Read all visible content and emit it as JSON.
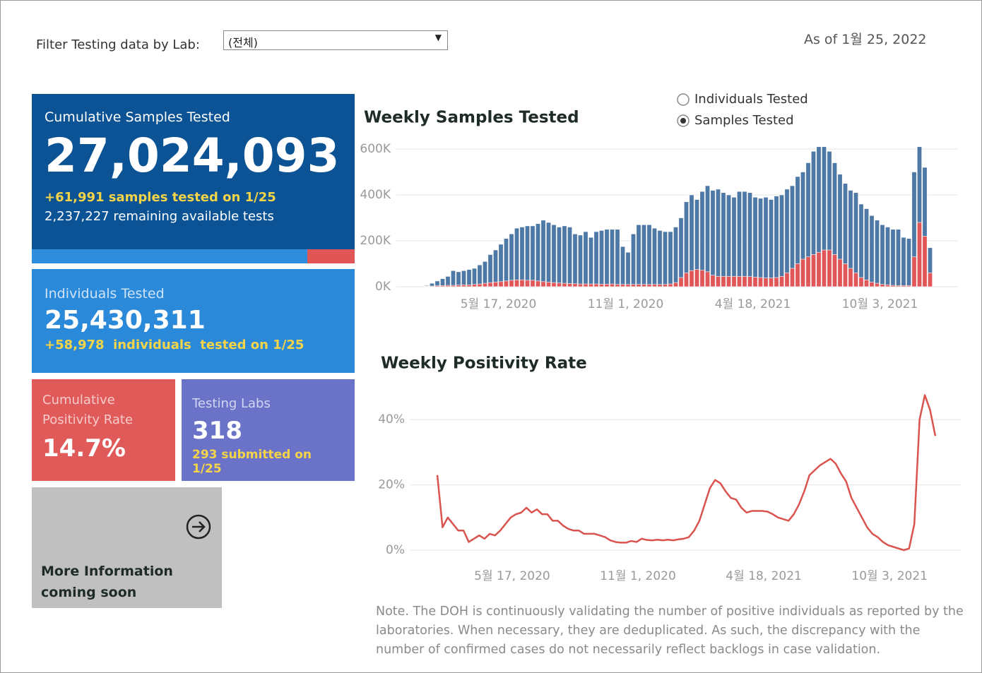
{
  "filter": {
    "label": "Filter Testing data by Lab:",
    "selected": "(전체)"
  },
  "as_of": "As of 1월 25, 2022",
  "cards": {
    "cumulative_samples": {
      "title": "Cumulative Samples Tested",
      "value": "27,024,093",
      "change": "+61,991 samples tested on 1/25",
      "remaining": "2,237,227 remaining available tests"
    },
    "individuals": {
      "title": "Individuals Tested",
      "value": "25,430,311",
      "change": "+58,978  individuals  tested on 1/25"
    },
    "positivity": {
      "title": "Cumulative Positivity Rate",
      "value": "14.7%"
    },
    "labs": {
      "title": "Testing Labs",
      "value": "318",
      "change": "293 submitted on 1/25"
    },
    "more_info": {
      "title": "More Information coming soon"
    }
  },
  "toggle": {
    "options": [
      "Individuals Tested",
      "Samples Tested"
    ],
    "selected": 1
  },
  "chart_data": [
    {
      "type": "bar",
      "title": "Weekly Samples Tested",
      "categories": [
        null,
        null,
        null,
        null,
        null,
        null,
        null,
        "5월 17, 2020",
        null,
        null,
        null,
        null,
        null,
        null,
        null,
        null,
        null,
        null,
        null,
        null,
        null,
        null,
        null,
        null,
        null,
        null,
        null,
        null,
        null,
        null,
        null,
        "11월 1, 2020",
        null,
        null,
        null,
        null,
        null,
        null,
        null,
        null,
        null,
        null,
        null,
        null,
        null,
        null,
        null,
        null,
        null,
        null,
        null,
        null,
        null,
        null,
        null,
        "4월 18, 2021",
        null,
        null,
        null,
        null,
        null,
        null,
        null,
        null,
        null,
        null,
        null,
        null,
        null,
        null,
        null,
        null,
        null,
        null,
        null,
        null,
        null,
        null,
        null,
        "10월 3, 2021",
        null,
        null,
        null,
        null,
        null,
        null,
        null,
        null,
        null,
        null,
        null,
        null,
        null,
        null,
        null,
        null
      ],
      "series": [
        {
          "color": "#4e79a7",
          "values": [
            5000,
            15000,
            25000,
            35000,
            45000,
            70000,
            65000,
            70000,
            75000,
            80000,
            95000,
            110000,
            140000,
            160000,
            185000,
            210000,
            230000,
            255000,
            260000,
            265000,
            265000,
            275000,
            290000,
            280000,
            270000,
            260000,
            265000,
            260000,
            230000,
            225000,
            240000,
            215000,
            240000,
            245000,
            250000,
            250000,
            250000,
            175000,
            150000,
            230000,
            270000,
            270000,
            270000,
            255000,
            245000,
            240000,
            240000,
            260000,
            300000,
            370000,
            400000,
            380000,
            415000,
            440000,
            420000,
            425000,
            410000,
            400000,
            390000,
            415000,
            415000,
            410000,
            390000,
            385000,
            390000,
            380000,
            395000,
            400000,
            425000,
            440000,
            480000,
            500000,
            540000,
            590000,
            610000,
            610000,
            590000,
            540000,
            490000,
            450000,
            420000,
            410000,
            360000,
            340000,
            310000,
            290000,
            270000,
            260000,
            250000,
            250000,
            215000,
            210000,
            500000,
            610000,
            520000,
            170000
          ]
        },
        {
          "color": "#e15759",
          "values": [
            2000,
            3000,
            4000,
            5000,
            6000,
            6000,
            7000,
            8000,
            8000,
            10000,
            12000,
            15000,
            18000,
            20000,
            22000,
            25000,
            28000,
            30000,
            30000,
            28000,
            28000,
            25000,
            22000,
            20000,
            18000,
            16000,
            15000,
            14000,
            13000,
            12000,
            12000,
            12000,
            12000,
            11000,
            11000,
            12000,
            10000,
            10000,
            10000,
            10000,
            10000,
            10000,
            10000,
            10000,
            10000,
            10000,
            12000,
            18000,
            40000,
            60000,
            70000,
            75000,
            72000,
            65000,
            50000,
            45000,
            45000,
            45000,
            45000,
            45000,
            45000,
            44000,
            42000,
            40000,
            38000,
            38000,
            40000,
            45000,
            60000,
            80000,
            100000,
            120000,
            130000,
            140000,
            150000,
            160000,
            160000,
            140000,
            120000,
            100000,
            80000,
            60000,
            40000,
            30000,
            20000,
            15000,
            10000,
            8000,
            6000,
            5000,
            5000,
            5000,
            130000,
            280000,
            220000,
            60000
          ]
        }
      ],
      "ylim": [
        0,
        620000
      ],
      "yticks": [
        {
          "value": 0,
          "label": "0K"
        },
        {
          "value": 200000,
          "label": "200K"
        },
        {
          "value": 400000,
          "label": "400K"
        },
        {
          "value": 600000,
          "label": "600K"
        }
      ],
      "grid": true
    },
    {
      "type": "line",
      "title": "Weekly Positivity Rate",
      "categories": [
        null,
        null,
        null,
        null,
        null,
        null,
        null,
        "5월 17, 2020",
        null,
        null,
        null,
        null,
        null,
        null,
        null,
        null,
        null,
        null,
        null,
        null,
        null,
        null,
        null,
        null,
        null,
        null,
        null,
        null,
        null,
        null,
        null,
        "11월 1, 2020",
        null,
        null,
        null,
        null,
        null,
        null,
        null,
        null,
        null,
        null,
        null,
        null,
        null,
        null,
        null,
        null,
        null,
        null,
        null,
        null,
        null,
        null,
        null,
        "4월 18, 2021",
        null,
        null,
        null,
        null,
        null,
        null,
        null,
        null,
        null,
        null,
        null,
        null,
        null,
        null,
        null,
        null,
        null,
        null,
        null,
        null,
        null,
        null,
        null,
        "10월 3, 2021",
        null,
        null,
        null,
        null,
        null,
        null,
        null,
        null,
        null,
        null,
        null,
        null,
        null,
        null,
        null,
        null
      ],
      "series": [
        {
          "color": "#d9534f",
          "values": [
            23,
            7,
            10,
            8,
            6,
            6,
            2.5,
            3.5,
            4.5,
            3.5,
            5,
            4.5,
            6,
            8,
            10,
            11,
            11.5,
            13,
            11.5,
            12.5,
            11,
            11,
            9,
            9,
            7.5,
            6.5,
            6,
            6,
            5,
            5,
            5,
            4.5,
            4,
            3,
            2.5,
            2.3,
            2.3,
            2.8,
            2.5,
            3.5,
            3.1,
            3,
            3.2,
            3,
            3.2,
            3,
            3.3,
            3.5,
            4,
            6,
            9,
            14,
            19,
            21.5,
            20.5,
            18,
            16,
            15.5,
            13,
            11.5,
            12,
            12,
            12,
            11.8,
            11,
            10,
            9.5,
            9,
            11,
            14,
            18,
            23,
            24.5,
            26,
            27,
            28,
            26.5,
            23.5,
            21,
            16,
            13,
            10,
            7,
            5,
            4,
            2.5,
            1.5,
            1,
            0.5,
            0,
            0.5,
            8,
            40,
            47.5,
            43,
            35
          ]
        }
      ],
      "ylim": [
        0,
        50
      ],
      "yticks": [
        {
          "value": 0,
          "label": "0%"
        },
        {
          "value": 20,
          "label": "20%"
        },
        {
          "value": 40,
          "label": "40%"
        }
      ],
      "grid": true
    }
  ],
  "note": "Note. The DOH is continuously validating the number of positive individuals as reported by the laboratories. When necessary, they are deduplicated. As such, the discrepancy with the number of confirmed cases do not necessarily reflect backlogs in case validation."
}
